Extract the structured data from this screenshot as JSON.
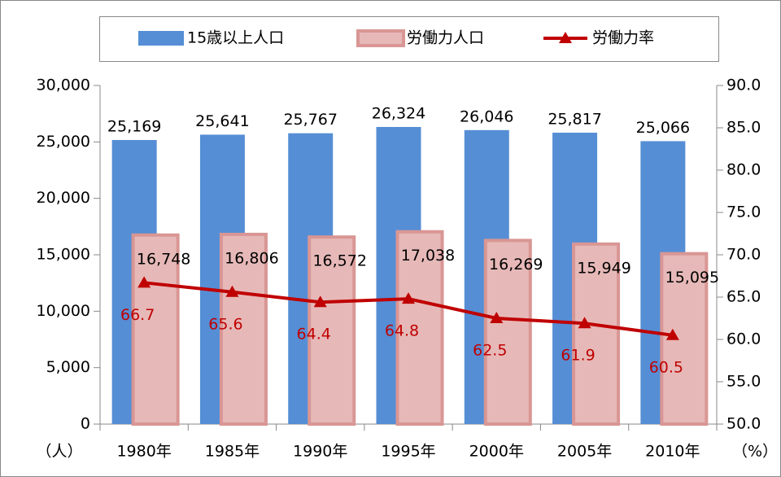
{
  "chart_data": {
    "type": "bar",
    "categories": [
      "1980年",
      "1985年",
      "1990年",
      "1995年",
      "2000年",
      "2005年",
      "2010年"
    ],
    "y_label": "（人）",
    "y2_label": "（%）",
    "series": [
      {
        "name": "15歳以上人口",
        "type": "bar",
        "color": "#558ed5",
        "values": [
          25169,
          25641,
          25767,
          26324,
          26046,
          25817,
          25066
        ],
        "value_labels": [
          "25,169",
          "25,641",
          "25,767",
          "26,324",
          "26,046",
          "25,817",
          "25,066"
        ]
      },
      {
        "name": "労働力人口",
        "type": "bar",
        "color": "#e6b9b8",
        "border_color": "#d99694",
        "values": [
          16748,
          16806,
          16572,
          17038,
          16269,
          15949,
          15095
        ],
        "value_labels": [
          "16,748",
          "16,806",
          "16,572",
          "17,038",
          "16,269",
          "15,949",
          "15,095"
        ]
      },
      {
        "name": "労働力率",
        "type": "line",
        "axis": "y2",
        "color": "#c00000",
        "values": [
          66.7,
          65.6,
          64.4,
          64.8,
          62.5,
          61.9,
          60.5
        ]
      }
    ],
    "ylim": [
      0,
      30000
    ],
    "yticks": [
      0,
      {
        "value": 5000,
        "label": "5,000"
      },
      {
        "value": 10000,
        "label": "10,000"
      },
      {
        "value": 15000,
        "label": "15,000"
      },
      {
        "value": 20000,
        "label": "20,000"
      },
      {
        "value": 25000,
        "label": "25,000"
      },
      {
        "value": 30000,
        "label": "30,000"
      }
    ],
    "y2lim": [
      50,
      90
    ],
    "y2ticks": [
      {
        "value": 50,
        "label": "50.0"
      },
      {
        "value": 55,
        "label": "55.0"
      },
      {
        "value": 60,
        "label": "60.0"
      },
      {
        "value": 65,
        "label": "65.0"
      },
      {
        "value": 70,
        "label": "70.0"
      },
      {
        "value": 75,
        "label": "75.0"
      },
      {
        "value": 80,
        "label": "80.0"
      },
      {
        "value": 85,
        "label": "85.0"
      },
      {
        "value": 90,
        "label": "90.0"
      }
    ],
    "legend": "top"
  }
}
